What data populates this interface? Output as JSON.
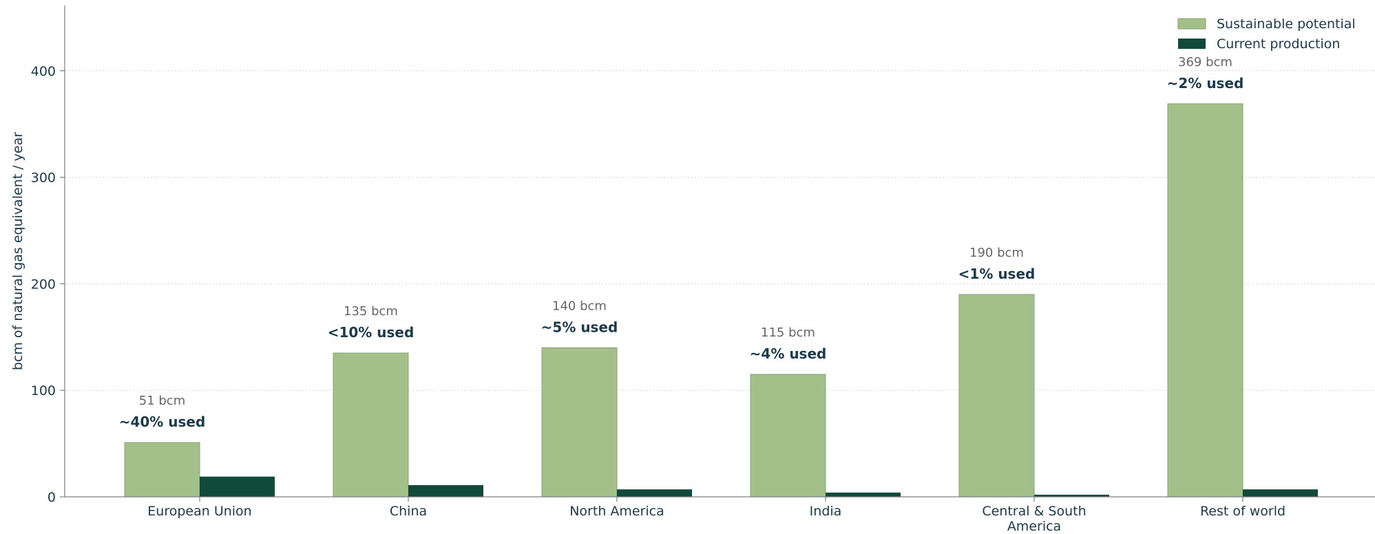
{
  "chart_data": {
    "type": "bar",
    "ylabel": "bcm of natural gas equivalent / year",
    "xlabel": "",
    "ylim": [
      0,
      460
    ],
    "yticks": [
      0,
      100,
      200,
      300,
      400
    ],
    "grid": "horizontal dotted",
    "legend_position": "top-right",
    "categories": [
      [
        "European Union"
      ],
      [
        "China"
      ],
      [
        "North America"
      ],
      [
        "India"
      ],
      [
        "Central & South",
        "America"
      ],
      [
        "Rest of world"
      ]
    ],
    "series": [
      {
        "name": "Sustainable potential",
        "color": "#a4c08a",
        "values": [
          51,
          135,
          140,
          115,
          190,
          369
        ]
      },
      {
        "name": "Current production",
        "color": "#0f4a3a",
        "values": [
          19,
          11,
          7,
          4,
          2,
          7
        ]
      }
    ],
    "annotations": [
      {
        "potential": "51 bcm",
        "used": "~40% used"
      },
      {
        "potential": "135 bcm",
        "used": "<10% used"
      },
      {
        "potential": "140 bcm",
        "used": "~5% used"
      },
      {
        "potential": "115 bcm",
        "used": "~4% used"
      },
      {
        "potential": "190 bcm",
        "used": "<1% used"
      },
      {
        "potential": "369 bcm",
        "used": "~2% used"
      }
    ]
  }
}
